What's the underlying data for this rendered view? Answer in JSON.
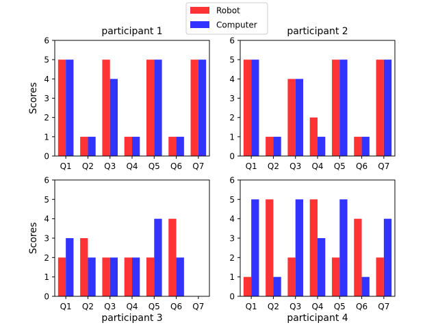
{
  "legend": {
    "items": [
      {
        "label": "Robot",
        "color": "#ff3333"
      },
      {
        "label": "Computer",
        "color": "#3333ff"
      }
    ]
  },
  "chart_data": [
    {
      "type": "bar",
      "title": "participant 1",
      "ylabel": "Scores",
      "xlabel": "",
      "categories": [
        "Q1",
        "Q2",
        "Q3",
        "Q4",
        "Q5",
        "Q6",
        "Q7"
      ],
      "series": [
        {
          "name": "Robot",
          "values": [
            5,
            1,
            5,
            1,
            5,
            1,
            5
          ]
        },
        {
          "name": "Computer",
          "values": [
            5,
            1,
            4,
            1,
            5,
            1,
            5
          ]
        }
      ],
      "ylim": [
        0,
        6
      ],
      "yticks": [
        "0",
        "1",
        "2",
        "3",
        "4",
        "5",
        "6"
      ]
    },
    {
      "type": "bar",
      "title": "participant 2",
      "ylabel": "",
      "xlabel": "",
      "categories": [
        "Q1",
        "Q2",
        "Q3",
        "Q4",
        "Q5",
        "Q6",
        "Q7"
      ],
      "series": [
        {
          "name": "Robot",
          "values": [
            5,
            1,
            4,
            2,
            5,
            1,
            5
          ]
        },
        {
          "name": "Computer",
          "values": [
            5,
            1,
            4,
            1,
            5,
            1,
            5
          ]
        }
      ],
      "ylim": [
        0,
        6
      ],
      "yticks": [
        "0",
        "1",
        "2",
        "3",
        "4",
        "5",
        "6"
      ]
    },
    {
      "type": "bar",
      "title": "",
      "ylabel": "Scores",
      "xlabel": "participant 3",
      "categories": [
        "Q1",
        "Q2",
        "Q3",
        "Q4",
        "Q5",
        "Q6",
        "Q7"
      ],
      "series": [
        {
          "name": "Robot",
          "values": [
            2,
            3,
            2,
            2,
            2,
            4,
            0
          ]
        },
        {
          "name": "Computer",
          "values": [
            3,
            2,
            2,
            2,
            4,
            2,
            0
          ]
        }
      ],
      "ylim": [
        0,
        6
      ],
      "yticks": [
        "0",
        "1",
        "2",
        "3",
        "4",
        "5",
        "6"
      ]
    },
    {
      "type": "bar",
      "title": "",
      "ylabel": "",
      "xlabel": "participant 4",
      "categories": [
        "Q1",
        "Q2",
        "Q3",
        "Q4",
        "Q5",
        "Q6",
        "Q7"
      ],
      "series": [
        {
          "name": "Robot",
          "values": [
            1,
            5,
            2,
            5,
            2,
            4,
            2
          ]
        },
        {
          "name": "Computer",
          "values": [
            5,
            1,
            5,
            3,
            5,
            1,
            4
          ]
        }
      ],
      "ylim": [
        0,
        6
      ],
      "yticks": [
        "0",
        "1",
        "2",
        "3",
        "4",
        "5",
        "6"
      ]
    }
  ]
}
